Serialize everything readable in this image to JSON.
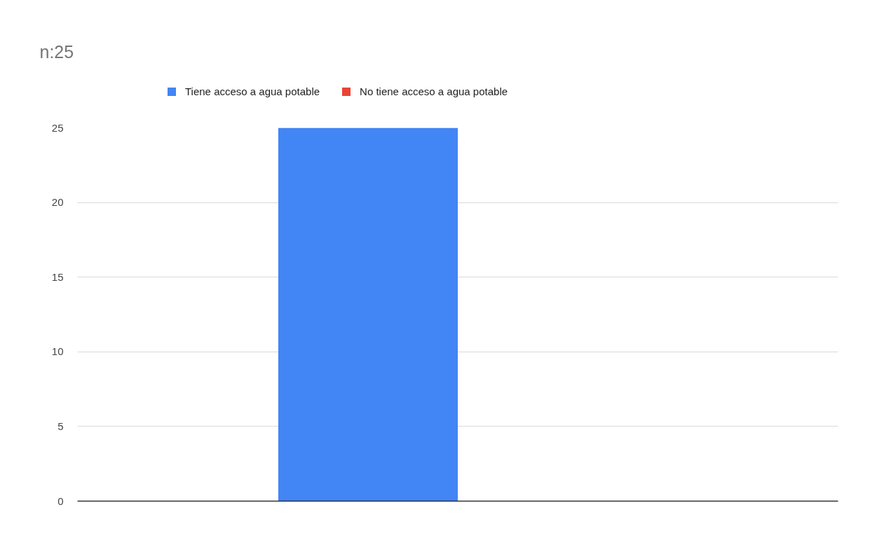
{
  "chart_data": {
    "type": "bar",
    "title": "n:25",
    "categories": [
      null
    ],
    "series": [
      {
        "name": "Tiene acceso a agua potable",
        "color": "#4285f4",
        "values": [
          25
        ]
      },
      {
        "name": "No tiene acceso a agua potable",
        "color": "#ea4335",
        "values": [
          0
        ]
      }
    ],
    "ylim": [
      0,
      25
    ],
    "yticks": [
      0,
      5,
      10,
      15,
      20,
      25
    ],
    "grid": "y",
    "legend": "top",
    "tick_labels": "y"
  }
}
